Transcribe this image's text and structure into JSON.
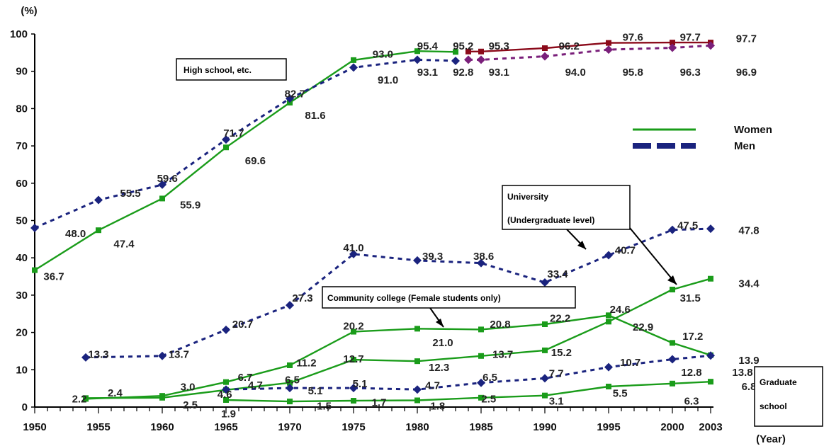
{
  "chart_data": {
    "type": "line",
    "ylabel": "(%)",
    "xlabel": "(Year)",
    "xlim": [
      1950,
      2003
    ],
    "ylim": [
      0,
      100
    ],
    "x_ticks": [
      1950,
      1955,
      1960,
      1965,
      1970,
      1975,
      1980,
      1985,
      1990,
      1995,
      2000,
      2003
    ],
    "y_ticks": [
      0,
      10,
      20,
      30,
      40,
      50,
      60,
      70,
      80,
      90,
      100
    ],
    "legend": {
      "position": "right",
      "entries": [
        {
          "name": "Women",
          "color": "#1a9c1a",
          "style": "solid"
        },
        {
          "name": "Men",
          "color": "#1a237e",
          "style": "dashed"
        }
      ]
    },
    "callouts": [
      {
        "id": "high-school",
        "text": "High school, etc."
      },
      {
        "id": "university",
        "lines": [
          "University",
          "(Undergraduate level)"
        ]
      },
      {
        "id": "community-college",
        "text": "Community college (Female students only)"
      },
      {
        "id": "graduate-school",
        "lines": [
          "Graduate",
          "school"
        ]
      }
    ],
    "series": [
      {
        "key": "hs_women_a",
        "color": "#1a9c1a",
        "dash": false,
        "x": [
          1950,
          1955,
          1960,
          1965,
          1970,
          1975,
          1980,
          1983
        ],
        "y": [
          36.7,
          47.4,
          55.9,
          69.6,
          81.6,
          93.0,
          95.4,
          95.2
        ]
      },
      {
        "key": "hs_men_a",
        "color": "#1a237e",
        "dash": true,
        "x": [
          1950,
          1955,
          1960,
          1965,
          1970,
          1975,
          1980,
          1983
        ],
        "y": [
          48.0,
          55.5,
          59.6,
          71.7,
          82.7,
          91.0,
          93.1,
          92.8
        ]
      },
      {
        "key": "hs_women_b",
        "color": "#8b0a1a",
        "dash": false,
        "x": [
          1984,
          1985,
          1990,
          1995,
          2000,
          2003
        ],
        "y": [
          95.3,
          95.3,
          96.2,
          97.6,
          97.7,
          97.7
        ]
      },
      {
        "key": "hs_men_b",
        "color": "#7a1f7a",
        "dash": true,
        "x": [
          1984,
          1985,
          1990,
          1995,
          2000,
          2003
        ],
        "y": [
          93.1,
          93.1,
          94.0,
          95.8,
          96.3,
          96.9
        ]
      },
      {
        "key": "univ_men",
        "color": "#1a237e",
        "dash": true,
        "x": [
          1954,
          1960,
          1965,
          1970,
          1975,
          1980,
          1985,
          1990,
          1995,
          2000,
          2003
        ],
        "y": [
          13.3,
          13.7,
          20.7,
          27.3,
          41.0,
          39.3,
          38.6,
          33.4,
          40.7,
          47.5,
          47.8
        ]
      },
      {
        "key": "univ_women",
        "color": "#1a9c1a",
        "dash": false,
        "x": [
          1954,
          1960,
          1965,
          1970,
          1975,
          1980,
          1985,
          1990,
          1995,
          2000,
          2003
        ],
        "y": [
          2.4,
          2.5,
          4.6,
          6.5,
          12.7,
          12.3,
          13.7,
          15.2,
          22.9,
          31.5,
          34.4
        ]
      },
      {
        "key": "community_college",
        "color": "#1a9c1a",
        "dash": false,
        "x": [
          1954,
          1960,
          1965,
          1970,
          1975,
          1980,
          1985,
          1990,
          1995,
          2000,
          2003
        ],
        "y": [
          2.2,
          3.0,
          6.7,
          11.2,
          20.2,
          21.0,
          20.8,
          22.2,
          24.6,
          17.2,
          13.9
        ]
      },
      {
        "key": "grad_men",
        "color": "#1a237e",
        "dash": true,
        "x": [
          1965,
          1970,
          1975,
          1980,
          1985,
          1990,
          1995,
          2000,
          2003
        ],
        "y": [
          4.7,
          5.1,
          5.1,
          4.7,
          6.5,
          7.7,
          10.7,
          12.8,
          13.8
        ]
      },
      {
        "key": "grad_women",
        "color": "#1a9c1a",
        "dash": false,
        "x": [
          1965,
          1970,
          1975,
          1980,
          1985,
          1990,
          1995,
          2000,
          2003
        ],
        "y": [
          1.9,
          1.5,
          1.7,
          1.8,
          2.5,
          3.1,
          5.5,
          6.3,
          6.8
        ]
      }
    ],
    "data_labels": [
      {
        "text": "36.7",
        "x": 1951.5,
        "y": 35.0
      },
      {
        "text": "48.0",
        "x": 1953.2,
        "y": 46.5
      },
      {
        "text": "47.4",
        "x": 1957.0,
        "y": 43.7
      },
      {
        "text": "55.5",
        "x": 1957.5,
        "y": 57.3
      },
      {
        "text": "55.9",
        "x": 1962.2,
        "y": 54.2
      },
      {
        "text": "59.6",
        "x": 1960.4,
        "y": 61.3
      },
      {
        "text": "69.6",
        "x": 1967.3,
        "y": 66.0
      },
      {
        "text": "71.7",
        "x": 1965.6,
        "y": 73.4
      },
      {
        "text": "81.6",
        "x": 1972.0,
        "y": 78.2
      },
      {
        "text": "82.7",
        "x": 1970.4,
        "y": 84.0
      },
      {
        "text": "93.0",
        "x": 1977.3,
        "y": 94.6
      },
      {
        "text": "91.0",
        "x": 1977.7,
        "y": 87.7
      },
      {
        "text": "95.4",
        "x": 1980.8,
        "y": 96.8
      },
      {
        "text": "95.2",
        "x": 1983.6,
        "y": 96.8
      },
      {
        "text": "95.3",
        "x": 1986.4,
        "y": 96.8
      },
      {
        "text": "93.1",
        "x": 1980.8,
        "y": 89.8
      },
      {
        "text": "92.8",
        "x": 1983.6,
        "y": 89.8
      },
      {
        "text": "93.1",
        "x": 1986.4,
        "y": 89.8
      },
      {
        "text": "96.2",
        "x": 1991.9,
        "y": 96.8
      },
      {
        "text": "94.0",
        "x": 1992.4,
        "y": 89.8
      },
      {
        "text": "97.6",
        "x": 1996.9,
        "y": 99.1
      },
      {
        "text": "95.8",
        "x": 1996.9,
        "y": 89.8
      },
      {
        "text": "97.7",
        "x": 2001.4,
        "y": 99.1
      },
      {
        "text": "96.3",
        "x": 2001.4,
        "y": 89.8
      },
      {
        "text": "97.7",
        "x": 2005.8,
        "y": 98.8
      },
      {
        "text": "96.9",
        "x": 2005.8,
        "y": 89.8
      },
      {
        "text": "13.3",
        "x": 1955.0,
        "y": 14.1
      },
      {
        "text": "13.7",
        "x": 1961.3,
        "y": 14.1
      },
      {
        "text": "20.7",
        "x": 1966.3,
        "y": 22.2
      },
      {
        "text": "27.3",
        "x": 1971.0,
        "y": 29.2
      },
      {
        "text": "41.0",
        "x": 1975.0,
        "y": 42.7
      },
      {
        "text": "39.3",
        "x": 1981.2,
        "y": 40.4
      },
      {
        "text": "38.6",
        "x": 1985.2,
        "y": 40.4
      },
      {
        "text": "33.4",
        "x": 1991.0,
        "y": 35.7
      },
      {
        "text": "40.7",
        "x": 1996.3,
        "y": 42.0
      },
      {
        "text": "47.5",
        "x": 2001.2,
        "y": 48.7
      },
      {
        "text": "47.8",
        "x": 2006.0,
        "y": 47.3
      },
      {
        "text": "34.4",
        "x": 2006.0,
        "y": 33.1
      },
      {
        "text": "31.5",
        "x": 2001.4,
        "y": 29.2
      },
      {
        "text": "24.6",
        "x": 1995.9,
        "y": 26.2
      },
      {
        "text": "22.9",
        "x": 1997.7,
        "y": 21.4
      },
      {
        "text": "22.2",
        "x": 1991.2,
        "y": 23.8
      },
      {
        "text": "20.8",
        "x": 1986.5,
        "y": 22.2
      },
      {
        "text": "21.0",
        "x": 1982.0,
        "y": 17.3
      },
      {
        "text": "20.2",
        "x": 1975.0,
        "y": 21.7
      },
      {
        "text": "17.2",
        "x": 2001.6,
        "y": 19.0
      },
      {
        "text": "15.2",
        "x": 1991.3,
        "y": 14.6
      },
      {
        "text": "13.9",
        "x": 2006.0,
        "y": 12.5
      },
      {
        "text": "13.8",
        "x": 2005.5,
        "y": 9.3
      },
      {
        "text": "13.7",
        "x": 1986.7,
        "y": 14.1
      },
      {
        "text": "12.3",
        "x": 1981.7,
        "y": 10.6
      },
      {
        "text": "12.7",
        "x": 1975.0,
        "y": 12.9
      },
      {
        "text": "12.8",
        "x": 2001.5,
        "y": 9.3
      },
      {
        "text": "11.2",
        "x": 1971.3,
        "y": 11.9
      },
      {
        "text": "10.7",
        "x": 1996.7,
        "y": 12.0
      },
      {
        "text": "7.7",
        "x": 1990.9,
        "y": 9.0
      },
      {
        "text": "6.5",
        "x": 1985.7,
        "y": 8.0
      },
      {
        "text": "6.5",
        "x": 1970.2,
        "y": 7.3
      },
      {
        "text": "6.7",
        "x": 1966.5,
        "y": 8.0
      },
      {
        "text": "5.5",
        "x": 1995.9,
        "y": 3.7
      },
      {
        "text": "5.1",
        "x": 1975.5,
        "y": 6.3
      },
      {
        "text": "5.1",
        "x": 1972.0,
        "y": 4.4
      },
      {
        "text": "4.7",
        "x": 1981.2,
        "y": 5.8
      },
      {
        "text": "4.7",
        "x": 1967.3,
        "y": 5.9
      },
      {
        "text": "4.6",
        "x": 1964.9,
        "y": 3.4
      },
      {
        "text": "3.0",
        "x": 1962.0,
        "y": 5.4
      },
      {
        "text": "2.5",
        "x": 1962.2,
        "y": 0.6
      },
      {
        "text": "2.4",
        "x": 1956.3,
        "y": 3.8
      },
      {
        "text": "2.2",
        "x": 1953.5,
        "y": 2.2
      },
      {
        "text": "1.9",
        "x": 1965.2,
        "y": -1.8
      },
      {
        "text": "1.5",
        "x": 1972.7,
        "y": 0.3
      },
      {
        "text": "1.7",
        "x": 1977.0,
        "y": 1.2
      },
      {
        "text": "1.8",
        "x": 1981.6,
        "y": 0.3
      },
      {
        "text": "2.5",
        "x": 1985.6,
        "y": 2.2
      },
      {
        "text": "3.1",
        "x": 1990.9,
        "y": 1.6
      },
      {
        "text": "6.3",
        "x": 2001.5,
        "y": 1.6
      },
      {
        "text": "6.8",
        "x": 2006.0,
        "y": 5.5
      }
    ]
  }
}
